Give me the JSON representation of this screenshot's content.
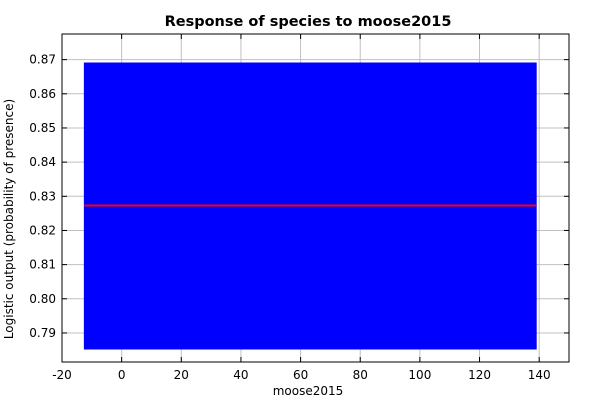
{
  "chart_data": {
    "type": "area",
    "title": "Response of species to moose2015",
    "xlabel": "moose2015",
    "ylabel": "Logistic output (probability of presence)",
    "xlim": [
      -20,
      150
    ],
    "ylim": [
      0.7815,
      0.8775
    ],
    "xticks": [
      -20,
      0,
      20,
      40,
      60,
      80,
      100,
      120,
      140
    ],
    "xtick_labels": [
      "-20",
      "0",
      "20",
      "40",
      "60",
      "80",
      "100",
      "120",
      "140"
    ],
    "yticks": [
      0.79,
      0.8,
      0.81,
      0.82,
      0.83,
      0.84,
      0.85,
      0.86,
      0.87
    ],
    "ytick_labels": [
      "0.79",
      "0.80",
      "0.81",
      "0.82",
      "0.83",
      "0.84",
      "0.85",
      "0.86",
      "0.87"
    ],
    "grid": true,
    "series": [
      {
        "kind": "band",
        "color": "#0000ff",
        "x": [
          -12.5,
          139
        ],
        "lower": [
          0.7853,
          0.7853
        ],
        "upper": [
          0.869,
          0.869
        ]
      },
      {
        "kind": "line",
        "color": "#ff0000",
        "x": [
          -12.5,
          139
        ],
        "y": [
          0.8273,
          0.8273
        ]
      }
    ]
  }
}
